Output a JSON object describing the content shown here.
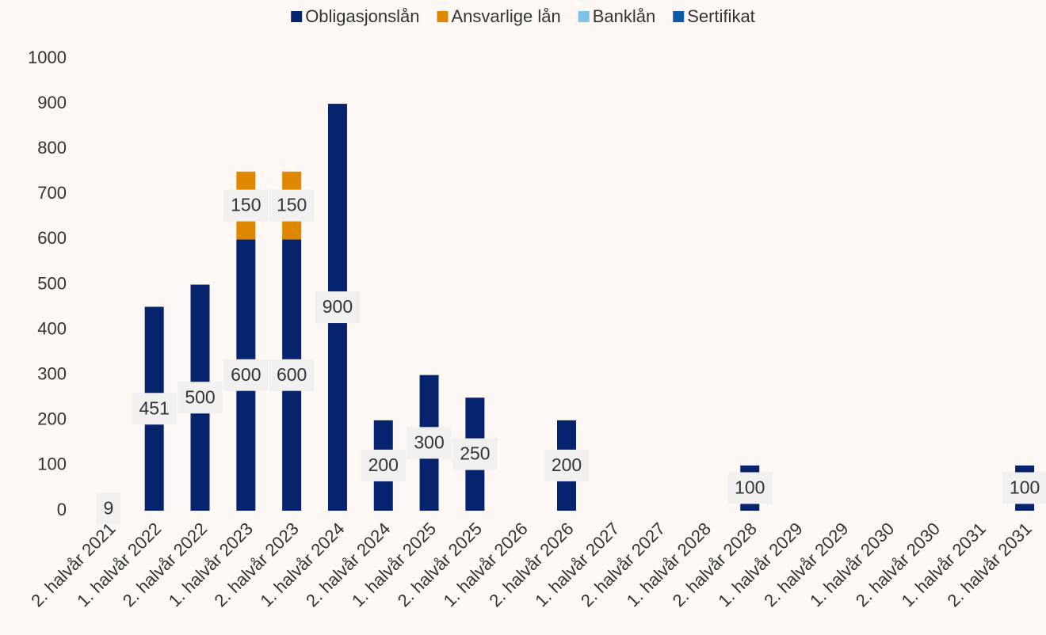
{
  "chart_data": {
    "type": "bar",
    "stacked": true,
    "categories": [
      "2. halvår 2021",
      "1. halvår 2022",
      "2. halvår 2022",
      "1. halvår 2023",
      "2. halvår 2023",
      "1. halvår 2024",
      "2. halvår 2024",
      "1. halvår 2025",
      "2. halvår 2025",
      "1. halvår 2026",
      "2. halvår 2026",
      "1. halvår 2027",
      "2. halvår 2027",
      "1. halvår 2028",
      "2. halvår 2028",
      "1. halvår 2029",
      "2. halvår 2029",
      "1. halvår 2030",
      "2. halvår 2030",
      "1. halvår 2031",
      "2. halvår 2031"
    ],
    "series": [
      {
        "name": "Obligasjonslån",
        "color": "#06246e",
        "values": [
          9,
          451,
          500,
          600,
          600,
          900,
          200,
          300,
          250,
          null,
          200,
          null,
          null,
          null,
          100,
          null,
          null,
          null,
          null,
          null,
          100
        ]
      },
      {
        "name": "Ansvarlige lån",
        "color": "#e08700",
        "values": [
          null,
          null,
          null,
          150,
          150,
          null,
          null,
          null,
          null,
          null,
          null,
          null,
          null,
          null,
          null,
          null,
          null,
          null,
          null,
          null,
          null
        ]
      },
      {
        "name": "Banklån",
        "color": "#7cc3ea",
        "values": [
          null,
          null,
          null,
          null,
          null,
          null,
          null,
          null,
          null,
          null,
          null,
          null,
          null,
          null,
          null,
          null,
          null,
          null,
          null,
          null,
          null
        ]
      },
      {
        "name": "Sertifikat",
        "color": "#0b5aa6",
        "values": [
          null,
          null,
          null,
          null,
          null,
          null,
          null,
          null,
          null,
          null,
          null,
          null,
          null,
          null,
          null,
          null,
          null,
          null,
          null,
          null,
          null
        ]
      }
    ],
    "ylim": [
      0,
      1000
    ],
    "yticks": [
      0,
      100,
      200,
      300,
      400,
      500,
      600,
      700,
      800,
      900,
      1000
    ],
    "grid": false,
    "legend": "top"
  }
}
